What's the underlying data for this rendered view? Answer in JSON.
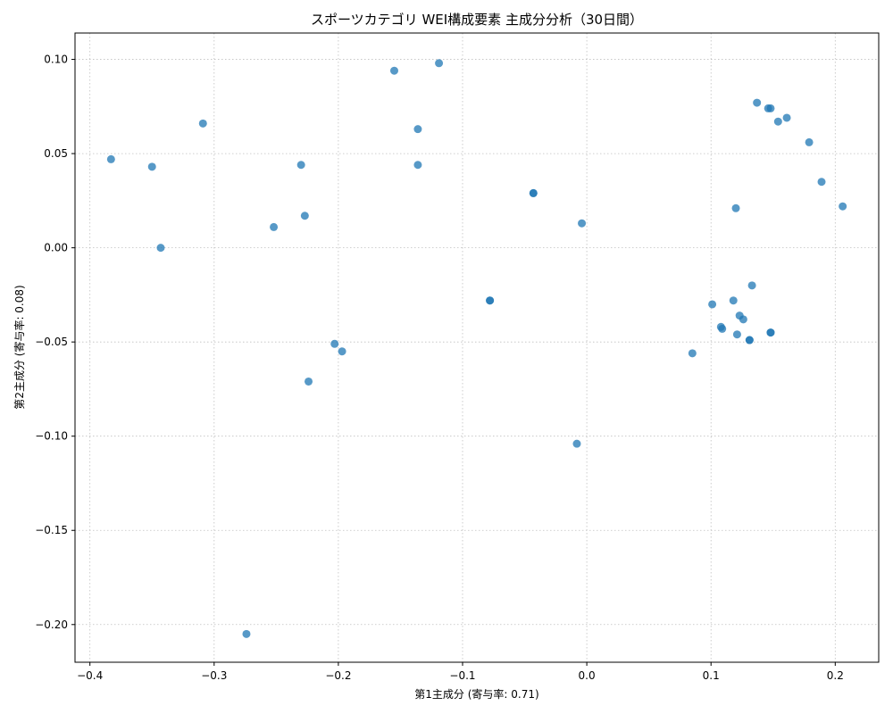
{
  "chart_data": {
    "type": "scatter",
    "title": "スポーツカテゴリ WEI構成要素 主成分分析（30日間）",
    "xlabel": "第1主成分 (寄与率: 0.71)",
    "ylabel": "第2主成分 (寄与率: 0.08)",
    "xlim": [
      -0.412,
      0.235
    ],
    "ylim": [
      -0.22,
      0.114
    ],
    "xticks": [
      -0.4,
      -0.3,
      -0.2,
      -0.1,
      0.0,
      0.1,
      0.2
    ],
    "xtick_labels": [
      "−0.4",
      "−0.3",
      "−0.2",
      "−0.1",
      "0.0",
      "0.1",
      "0.2"
    ],
    "yticks": [
      0.1,
      0.05,
      0.0,
      -0.05,
      -0.1,
      -0.15,
      -0.2
    ],
    "ytick_labels": [
      "0.10",
      "0.05",
      "0.00",
      "−0.05",
      "−0.10",
      "−0.15",
      "−0.20"
    ],
    "grid": true,
    "color": "#1f77b4",
    "points": [
      {
        "x": -0.383,
        "y": 0.047
      },
      {
        "x": -0.35,
        "y": 0.043
      },
      {
        "x": -0.343,
        "y": 0.0
      },
      {
        "x": -0.309,
        "y": 0.066
      },
      {
        "x": -0.274,
        "y": -0.205
      },
      {
        "x": -0.252,
        "y": 0.011
      },
      {
        "x": -0.23,
        "y": 0.044
      },
      {
        "x": -0.227,
        "y": 0.017
      },
      {
        "x": -0.224,
        "y": -0.071
      },
      {
        "x": -0.203,
        "y": -0.051
      },
      {
        "x": -0.197,
        "y": -0.055
      },
      {
        "x": -0.155,
        "y": 0.094
      },
      {
        "x": -0.136,
        "y": 0.063
      },
      {
        "x": -0.136,
        "y": 0.044
      },
      {
        "x": -0.119,
        "y": 0.098
      },
      {
        "x": -0.078,
        "y": -0.028
      },
      {
        "x": -0.078,
        "y": -0.028
      },
      {
        "x": -0.043,
        "y": 0.029
      },
      {
        "x": -0.043,
        "y": 0.029
      },
      {
        "x": -0.008,
        "y": -0.104
      },
      {
        "x": -0.004,
        "y": 0.013
      },
      {
        "x": 0.085,
        "y": -0.056
      },
      {
        "x": 0.101,
        "y": -0.03
      },
      {
        "x": 0.108,
        "y": -0.042
      },
      {
        "x": 0.109,
        "y": -0.043
      },
      {
        "x": 0.118,
        "y": -0.028
      },
      {
        "x": 0.12,
        "y": 0.021
      },
      {
        "x": 0.121,
        "y": -0.046
      },
      {
        "x": 0.123,
        "y": -0.036
      },
      {
        "x": 0.126,
        "y": -0.038
      },
      {
        "x": 0.131,
        "y": -0.049
      },
      {
        "x": 0.131,
        "y": -0.049
      },
      {
        "x": 0.133,
        "y": -0.02
      },
      {
        "x": 0.137,
        "y": 0.077
      },
      {
        "x": 0.146,
        "y": 0.074
      },
      {
        "x": 0.148,
        "y": 0.074
      },
      {
        "x": 0.148,
        "y": -0.045
      },
      {
        "x": 0.148,
        "y": -0.045
      },
      {
        "x": 0.154,
        "y": 0.067
      },
      {
        "x": 0.161,
        "y": 0.069
      },
      {
        "x": 0.179,
        "y": 0.056
      },
      {
        "x": 0.189,
        "y": 0.035
      },
      {
        "x": 0.206,
        "y": 0.022
      }
    ]
  }
}
